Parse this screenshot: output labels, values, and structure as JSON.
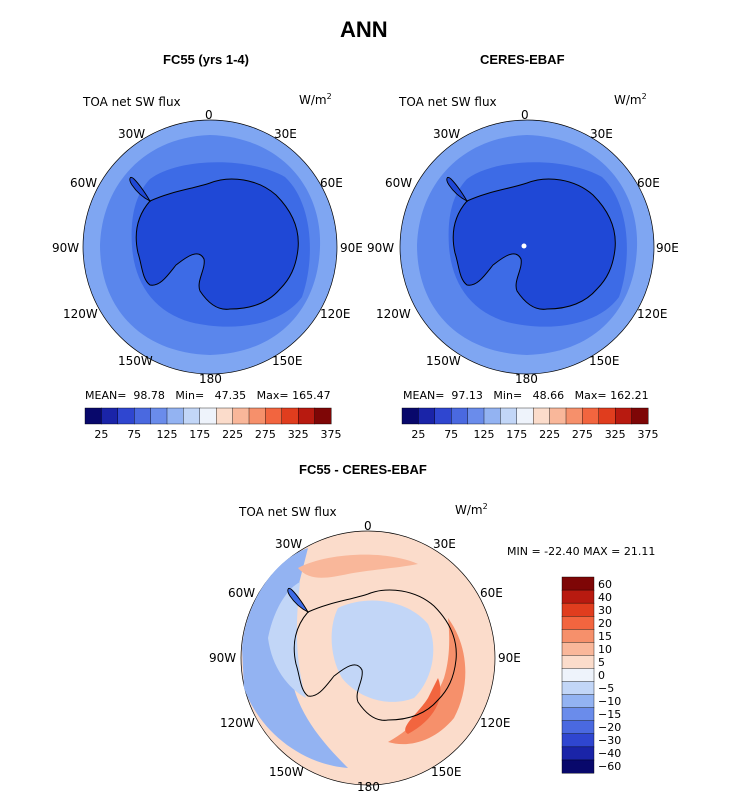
{
  "page_title": "ANN",
  "panels": [
    {
      "title": "FC55 (yrs 1-4)",
      "variable": "TOA net SW flux",
      "units": "W/m",
      "units_sup": "2",
      "stats": {
        "mean_label": "MEAN=",
        "mean": "98.78",
        "min_label": "Min=",
        "min": "47.35",
        "max_label": "Max=",
        "max": "165.47"
      }
    },
    {
      "title": "CERES-EBAF",
      "variable": "TOA net SW flux",
      "units": "W/m",
      "units_sup": "2",
      "stats": {
        "mean_label": "MEAN=",
        "mean": "97.13",
        "min_label": "Min=",
        "min": "48.66",
        "max_label": "Max=",
        "max": "162.21"
      }
    }
  ],
  "diff_panel": {
    "title": "FC55 - CERES-EBAF",
    "variable": "TOA net SW flux",
    "units": "W/m",
    "units_sup": "2",
    "minmax": "MIN = -22.40 MAX =  21.11"
  },
  "lon_labels": [
    "0",
    "30E",
    "60E",
    "90E",
    "120E",
    "150E",
    "180",
    "150W",
    "120W",
    "90W",
    "60W",
    "30W"
  ],
  "abs_colorbar": {
    "colors": [
      "#08086b",
      "#1a24a8",
      "#2f46d0",
      "#4a69e0",
      "#6a8ceb",
      "#93b3f2",
      "#c2d6f7",
      "#eef3fb",
      "#fbdccb",
      "#f9b79a",
      "#f6906b",
      "#f2653f",
      "#e03d1e",
      "#b81a10",
      "#7e0606"
    ],
    "ticks": [
      "25",
      "75",
      "125",
      "175",
      "225",
      "275",
      "325",
      "375"
    ]
  },
  "diff_colorbar": {
    "colors": [
      "#08086b",
      "#1a24a8",
      "#2f46d0",
      "#4a69e0",
      "#6a8ceb",
      "#93b3f2",
      "#c2d6f7",
      "#eef3fb",
      "#fbdccb",
      "#f9b79a",
      "#f6906b",
      "#f2653f",
      "#e03d1e",
      "#b81a10",
      "#7e0606"
    ],
    "ticks": [
      "60",
      "40",
      "30",
      "20",
      "15",
      "10",
      "5",
      "0",
      "−5",
      "−10",
      "−15",
      "−20",
      "−30",
      "−40",
      "−60"
    ]
  },
  "map_colors": {
    "outer": "#7fa6f2",
    "mid": "#5a86ec",
    "inner": "#3d6be6",
    "ice": "#1f48d6",
    "coast": "#000000",
    "diff_pos1": "#fbdccb",
    "diff_pos2": "#f9b79a",
    "diff_pos3": "#f6906b",
    "diff_neg1": "#c2d6f7",
    "diff_neg2": "#93b3f2",
    "diff_neg3": "#6a8ceb",
    "diff_zero": "#eef3fb"
  }
}
